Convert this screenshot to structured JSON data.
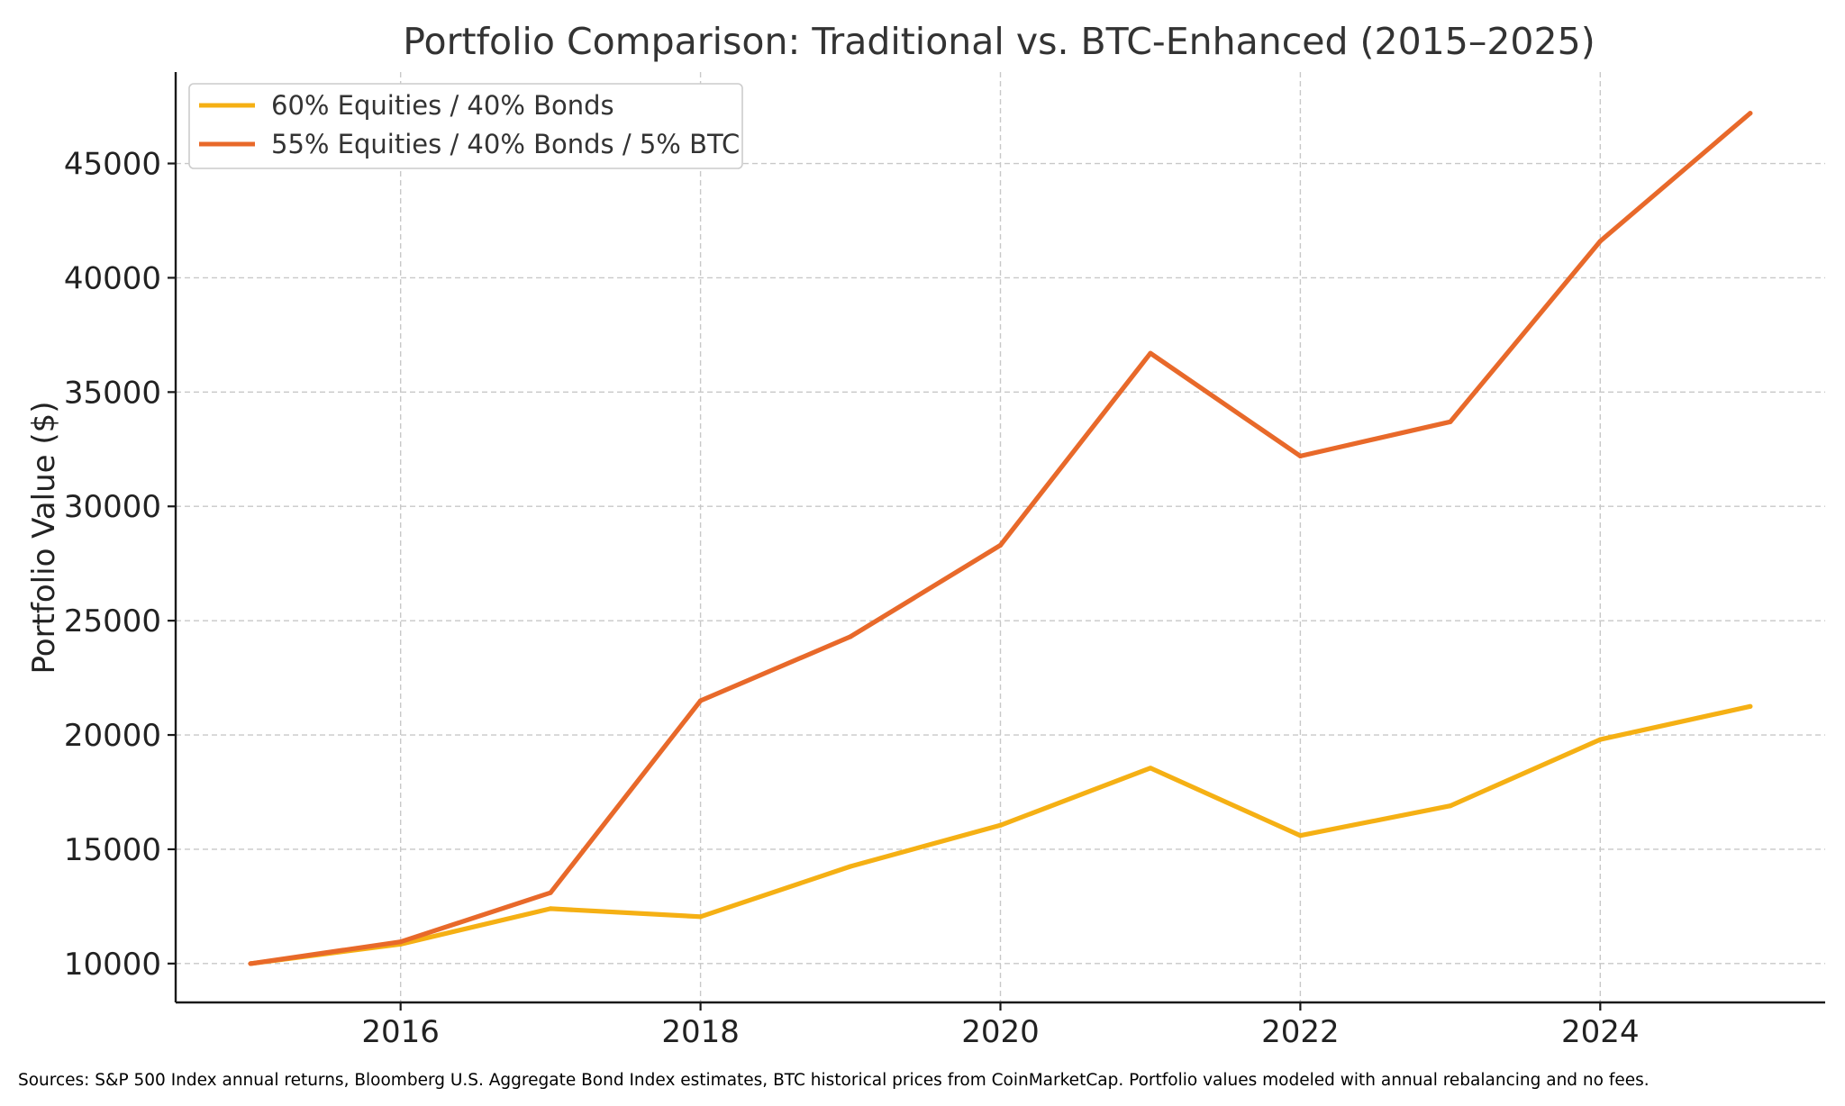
{
  "chart_data": {
    "type": "line",
    "title": "Portfolio Comparison: Traditional vs. BTC-Enhanced (2015–2025)",
    "xlabel": "",
    "ylabel": "Portfolio Value ($)",
    "x": [
      2015,
      2016,
      2017,
      2018,
      2019,
      2020,
      2021,
      2022,
      2023,
      2024,
      2025
    ],
    "xlim": [
      2014.5,
      2025.5
    ],
    "ylim": [
      8300,
      49000
    ],
    "x_ticks": [
      2016,
      2018,
      2020,
      2022,
      2024
    ],
    "x_tick_labels": [
      "2016",
      "2018",
      "2020",
      "2022",
      "2024"
    ],
    "y_ticks": [
      10000,
      15000,
      20000,
      25000,
      30000,
      35000,
      40000,
      45000
    ],
    "y_tick_labels": [
      "10000",
      "15000",
      "20000",
      "25000",
      "30000",
      "35000",
      "40000",
      "45000"
    ],
    "grid": true,
    "legend_position": "top-left",
    "series": [
      {
        "name": "60% Equities / 40% Bonds",
        "color": "#F5B014",
        "values": [
          10000,
          10850,
          12400,
          12050,
          14250,
          16050,
          18550,
          15600,
          16900,
          19800,
          21250
        ]
      },
      {
        "name": "55% Equities / 40% Bonds / 5% BTC",
        "color": "#E8692A",
        "values": [
          10000,
          10950,
          13100,
          21500,
          24300,
          28300,
          36700,
          32200,
          33700,
          41600,
          47200
        ]
      }
    ]
  },
  "source_note": "Sources: S&P 500 Index annual returns, Bloomberg U.S. Aggregate Bond Index estimates, BTC historical prices from CoinMarketCap. Portfolio values modeled with annual rebalancing and no fees."
}
